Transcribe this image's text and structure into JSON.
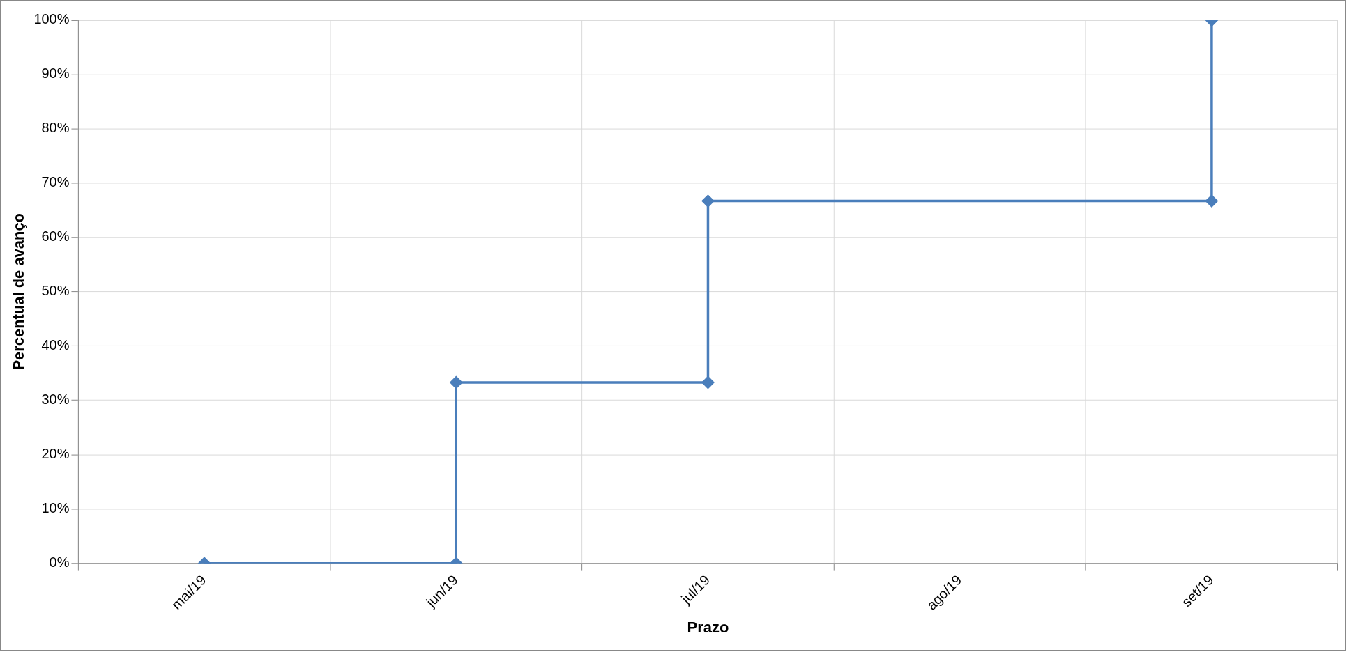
{
  "chart_data": {
    "type": "line",
    "xlabel": "Prazo",
    "ylabel": "Percentual de avanço",
    "categories": [
      "mai/19",
      "jun/19",
      "jul/19",
      "ago/19",
      "set/19"
    ],
    "series": [
      {
        "color": "#4a7ebb",
        "x": [
          "mai/19",
          "jun/19",
          "jun/19",
          "jul/19",
          "jul/19",
          "set/19",
          "set/19"
        ],
        "values": [
          0,
          0,
          33.3,
          33.3,
          66.7,
          66.7,
          100
        ]
      }
    ],
    "ylim": [
      0,
      100
    ],
    "yticks": [
      {
        "value": 0,
        "label": "0%"
      },
      {
        "value": 10,
        "label": "10%"
      },
      {
        "value": 20,
        "label": "20%"
      },
      {
        "value": 30,
        "label": "30%"
      },
      {
        "value": 40,
        "label": "40%"
      },
      {
        "value": 50,
        "label": "50%"
      },
      {
        "value": 60,
        "label": "60%"
      },
      {
        "value": 70,
        "label": "70%"
      },
      {
        "value": 80,
        "label": "80%"
      },
      {
        "value": 90,
        "label": "90%"
      },
      {
        "value": 100,
        "label": "100%"
      }
    ],
    "grid": true,
    "marker": "diamond",
    "line_style": "solid"
  }
}
